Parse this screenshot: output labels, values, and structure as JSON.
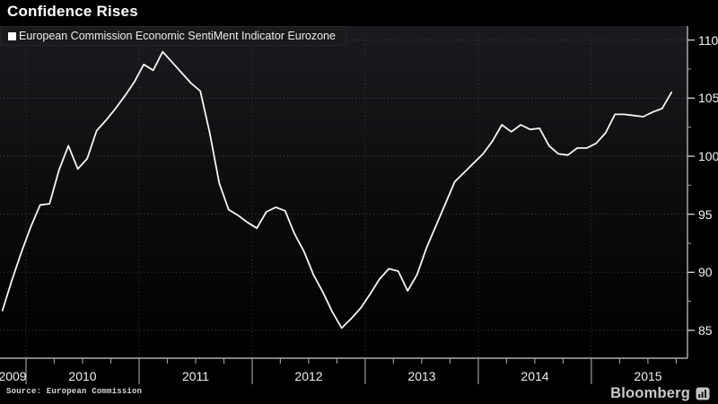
{
  "header": {
    "title": "Confidence Rises"
  },
  "legend": {
    "marker": "white-square",
    "label": "European Commission Economic SentiMent Indicator Eurozone"
  },
  "footer": {
    "source": "Source: European Commission",
    "brand": "Bloomberg",
    "brand_icon": "bloomberg-terminal-icon"
  },
  "colors": {
    "background": "#000000",
    "plot_top": "#1b1b1f",
    "plot_bottom": "#000000",
    "line": "#f5f5f5",
    "axis": "#cfcfcf",
    "grid": "#424248",
    "tick_major": "#c8c8c8",
    "tick_minor": "#8a8a8a",
    "legend_bg": "#1a1a1d",
    "text": "#f0f0f0"
  },
  "chart_data": {
    "type": "line",
    "title": "Confidence Rises",
    "xlabel": "",
    "ylabel": "",
    "grid": "dotted-major",
    "legend_position": "top-left",
    "y_axis_side": "right",
    "xlim_years": [
      2009.77,
      2015.85
    ],
    "ylim": [
      82.6,
      110.9
    ],
    "y_ticks": [
      85,
      90,
      95,
      100,
      105,
      110
    ],
    "y_minor_ticks": [
      87.5,
      92.5,
      97.5,
      102.5,
      107.5
    ],
    "x_year_labels": [
      "2009",
      "2010",
      "2011",
      "2012",
      "2013",
      "2014",
      "2015"
    ],
    "series": [
      {
        "name": "European Commission Economic SentiMent Indicator Eurozone",
        "x": [
          "2009-10",
          "2009-11",
          "2009-12",
          "2010-01",
          "2010-02",
          "2010-03",
          "2010-04",
          "2010-05",
          "2010-06",
          "2010-07",
          "2010-08",
          "2010-09",
          "2010-10",
          "2010-11",
          "2010-12",
          "2011-01",
          "2011-02",
          "2011-03",
          "2011-04",
          "2011-05",
          "2011-06",
          "2011-07",
          "2011-08",
          "2011-09",
          "2011-10",
          "2011-11",
          "2011-12",
          "2012-01",
          "2012-02",
          "2012-03",
          "2012-04",
          "2012-05",
          "2012-06",
          "2012-07",
          "2012-08",
          "2012-09",
          "2012-10",
          "2012-11",
          "2012-12",
          "2013-01",
          "2013-02",
          "2013-03",
          "2013-04",
          "2013-05",
          "2013-06",
          "2013-07",
          "2013-08",
          "2013-09",
          "2013-10",
          "2013-11",
          "2013-12",
          "2014-01",
          "2014-02",
          "2014-03",
          "2014-04",
          "2014-05",
          "2014-06",
          "2014-07",
          "2014-08",
          "2014-09",
          "2014-10",
          "2014-11",
          "2014-12",
          "2015-01",
          "2015-02",
          "2015-03",
          "2015-04",
          "2015-05",
          "2015-06",
          "2015-07",
          "2015-08",
          "2015-09"
        ],
        "values": [
          86.7,
          89.3,
          91.7,
          93.9,
          95.8,
          95.9,
          98.8,
          100.9,
          98.9,
          99.8,
          102.2,
          103.1,
          104.1,
          105.2,
          106.4,
          107.9,
          107.4,
          109.0,
          108.1,
          107.2,
          106.3,
          105.6,
          102.0,
          97.7,
          95.4,
          94.9,
          94.3,
          93.8,
          95.2,
          95.6,
          95.3,
          93.3,
          91.8,
          89.8,
          88.3,
          86.6,
          85.2,
          86.0,
          86.9,
          88.1,
          89.4,
          90.3,
          90.1,
          88.4,
          89.8,
          92.1,
          94.0,
          95.9,
          97.8,
          98.6,
          99.4,
          100.2,
          101.3,
          102.7,
          102.1,
          102.7,
          102.3,
          102.4,
          100.9,
          100.2,
          100.1,
          100.7,
          100.7,
          101.1,
          102.0,
          103.6,
          103.6,
          103.5,
          103.4,
          103.8,
          104.1,
          105.5
        ]
      }
    ]
  }
}
